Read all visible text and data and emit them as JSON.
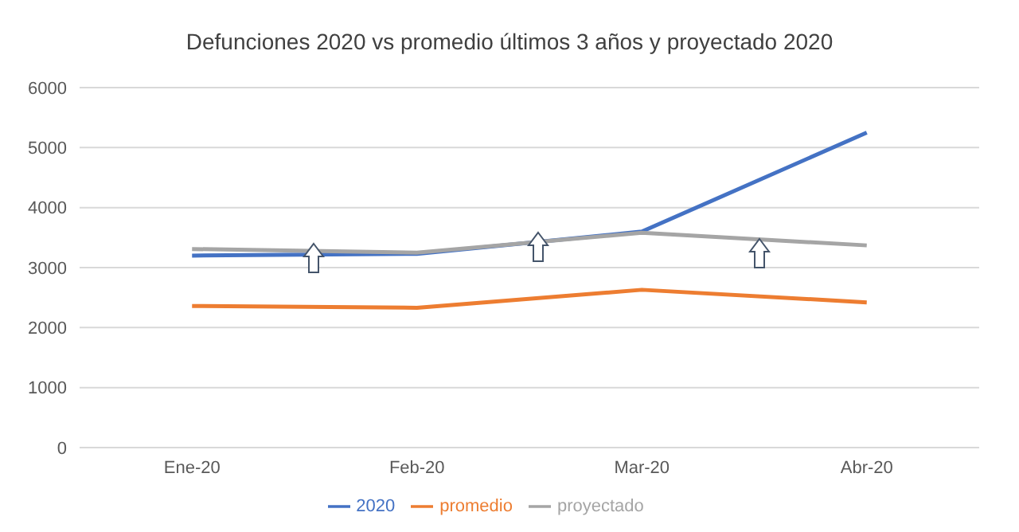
{
  "chart_data": {
    "type": "line",
    "title": "Defunciones 2020 vs promedio últimos 3 años y proyectado 2020",
    "categories": [
      "Ene-20",
      "Feb-20",
      "Mar-20",
      "Abr-20"
    ],
    "series": [
      {
        "name": "2020",
        "color": "#4472c4",
        "values": [
          3200,
          3230,
          3600,
          5250
        ]
      },
      {
        "name": "promedio",
        "color": "#ed7d31",
        "values": [
          2360,
          2330,
          2630,
          2420
        ]
      },
      {
        "name": "proyectado",
        "color": "#a5a5a5",
        "values": [
          3310,
          3250,
          3580,
          3370
        ]
      }
    ],
    "ylim": [
      0,
      6000
    ],
    "yticks": [
      0,
      1000,
      2000,
      3000,
      4000,
      5000,
      6000
    ],
    "grid": "y",
    "legend": "bottom",
    "marker": "none"
  }
}
